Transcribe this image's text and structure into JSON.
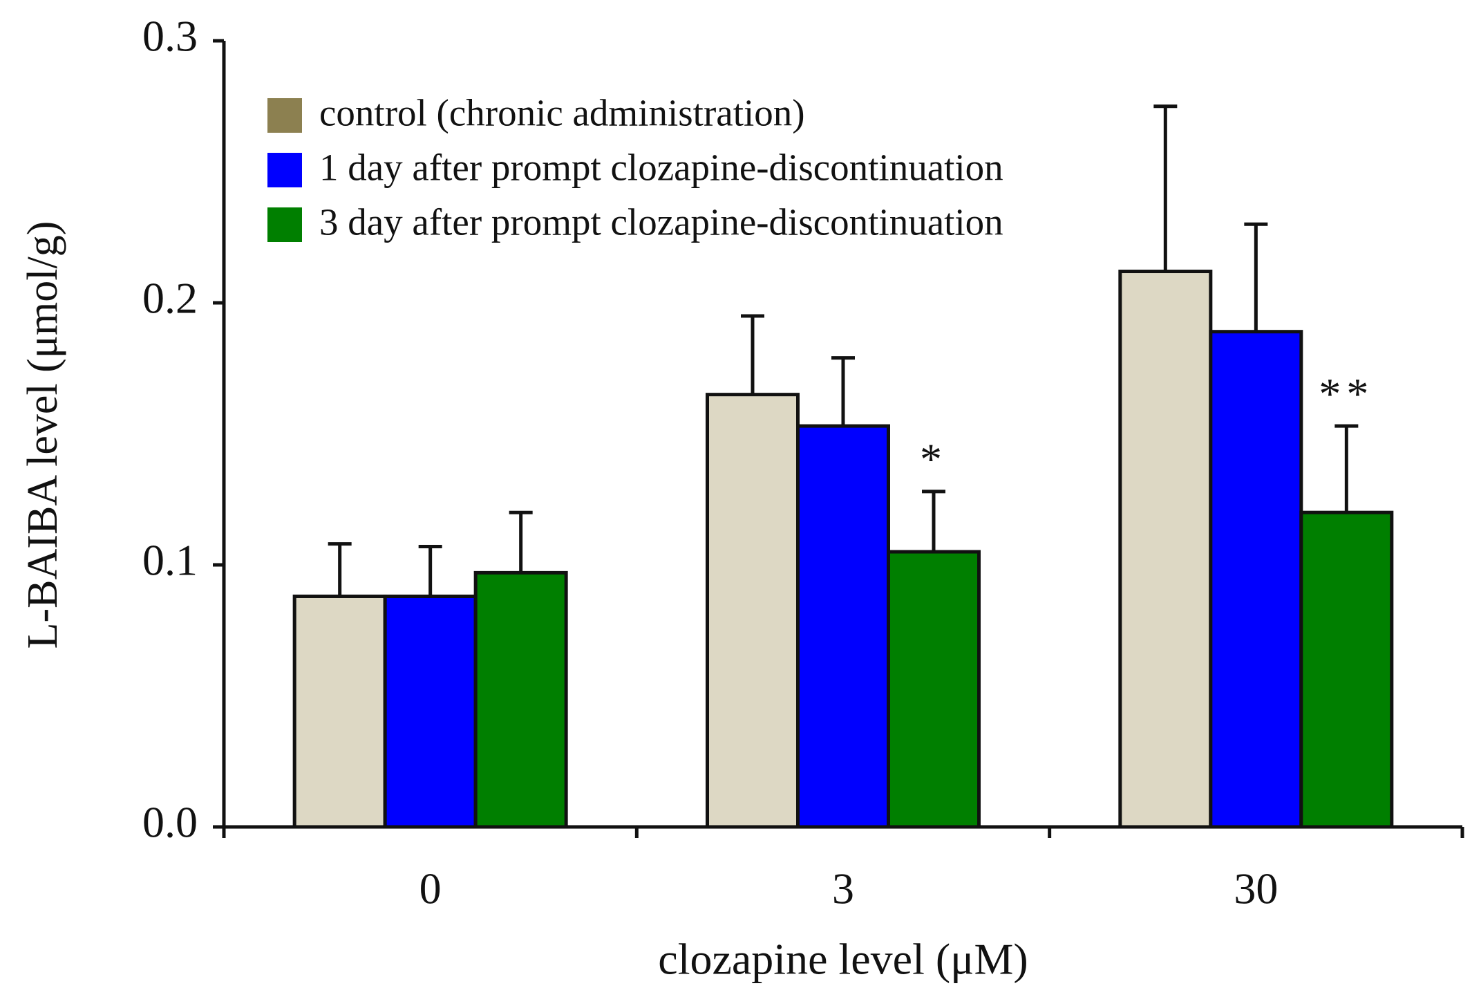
{
  "chart_data": {
    "type": "bar",
    "x_label": "clozapine level (μM)",
    "y_label": "L-BAIBA level (μmol/g)",
    "categories": [
      "0",
      "3",
      "30"
    ],
    "series": [
      {
        "name": "control (chronic administration)",
        "color": "#ddd8c4",
        "legend_color": "#8c8050",
        "values": [
          0.088,
          0.165,
          0.212
        ],
        "errors": [
          0.02,
          0.03,
          0.063
        ]
      },
      {
        "name": "1 day after prompt clozapine-discontinuation",
        "color": "#0000ff",
        "values": [
          0.088,
          0.153,
          0.189
        ],
        "errors": [
          0.019,
          0.026,
          0.041
        ]
      },
      {
        "name": "3 day after prompt clozapine-discontinuation",
        "color": "#007f00",
        "values": [
          0.097,
          0.105,
          0.12
        ],
        "errors": [
          0.023,
          0.023,
          0.033
        ],
        "significance": [
          null,
          "*",
          "**"
        ]
      }
    ],
    "ylim": [
      0,
      0.3
    ],
    "yticks": [
      {
        "value": 0,
        "label": "0.0"
      },
      0.1,
      0.2,
      0.3
    ]
  }
}
